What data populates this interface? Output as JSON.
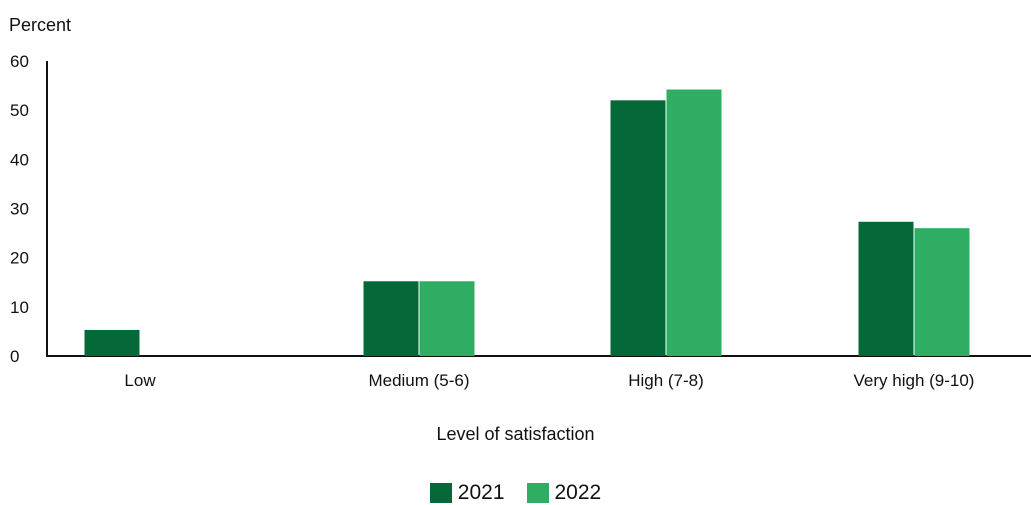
{
  "colors": {
    "s2021": "#056838",
    "s2022": "#2fad63",
    "axis": "#111111"
  },
  "chart_data": {
    "type": "bar",
    "ylabel": "Percent",
    "xlabel": "Level of satisfaction",
    "ylim": [
      0,
      60
    ],
    "yticks": [
      0,
      10,
      20,
      30,
      40,
      50,
      60
    ],
    "grid": false,
    "legend": "bottom-center",
    "categories": [
      "Low",
      "Medium (5-6)",
      "High (7-8)",
      "Very high (9-10)"
    ],
    "series": [
      {
        "name": "2021",
        "values": [
          5.3,
          15.2,
          52.0,
          27.3
        ]
      },
      {
        "name": "2022",
        "values": [
          0,
          15.2,
          54.2,
          26.0
        ]
      }
    ]
  }
}
